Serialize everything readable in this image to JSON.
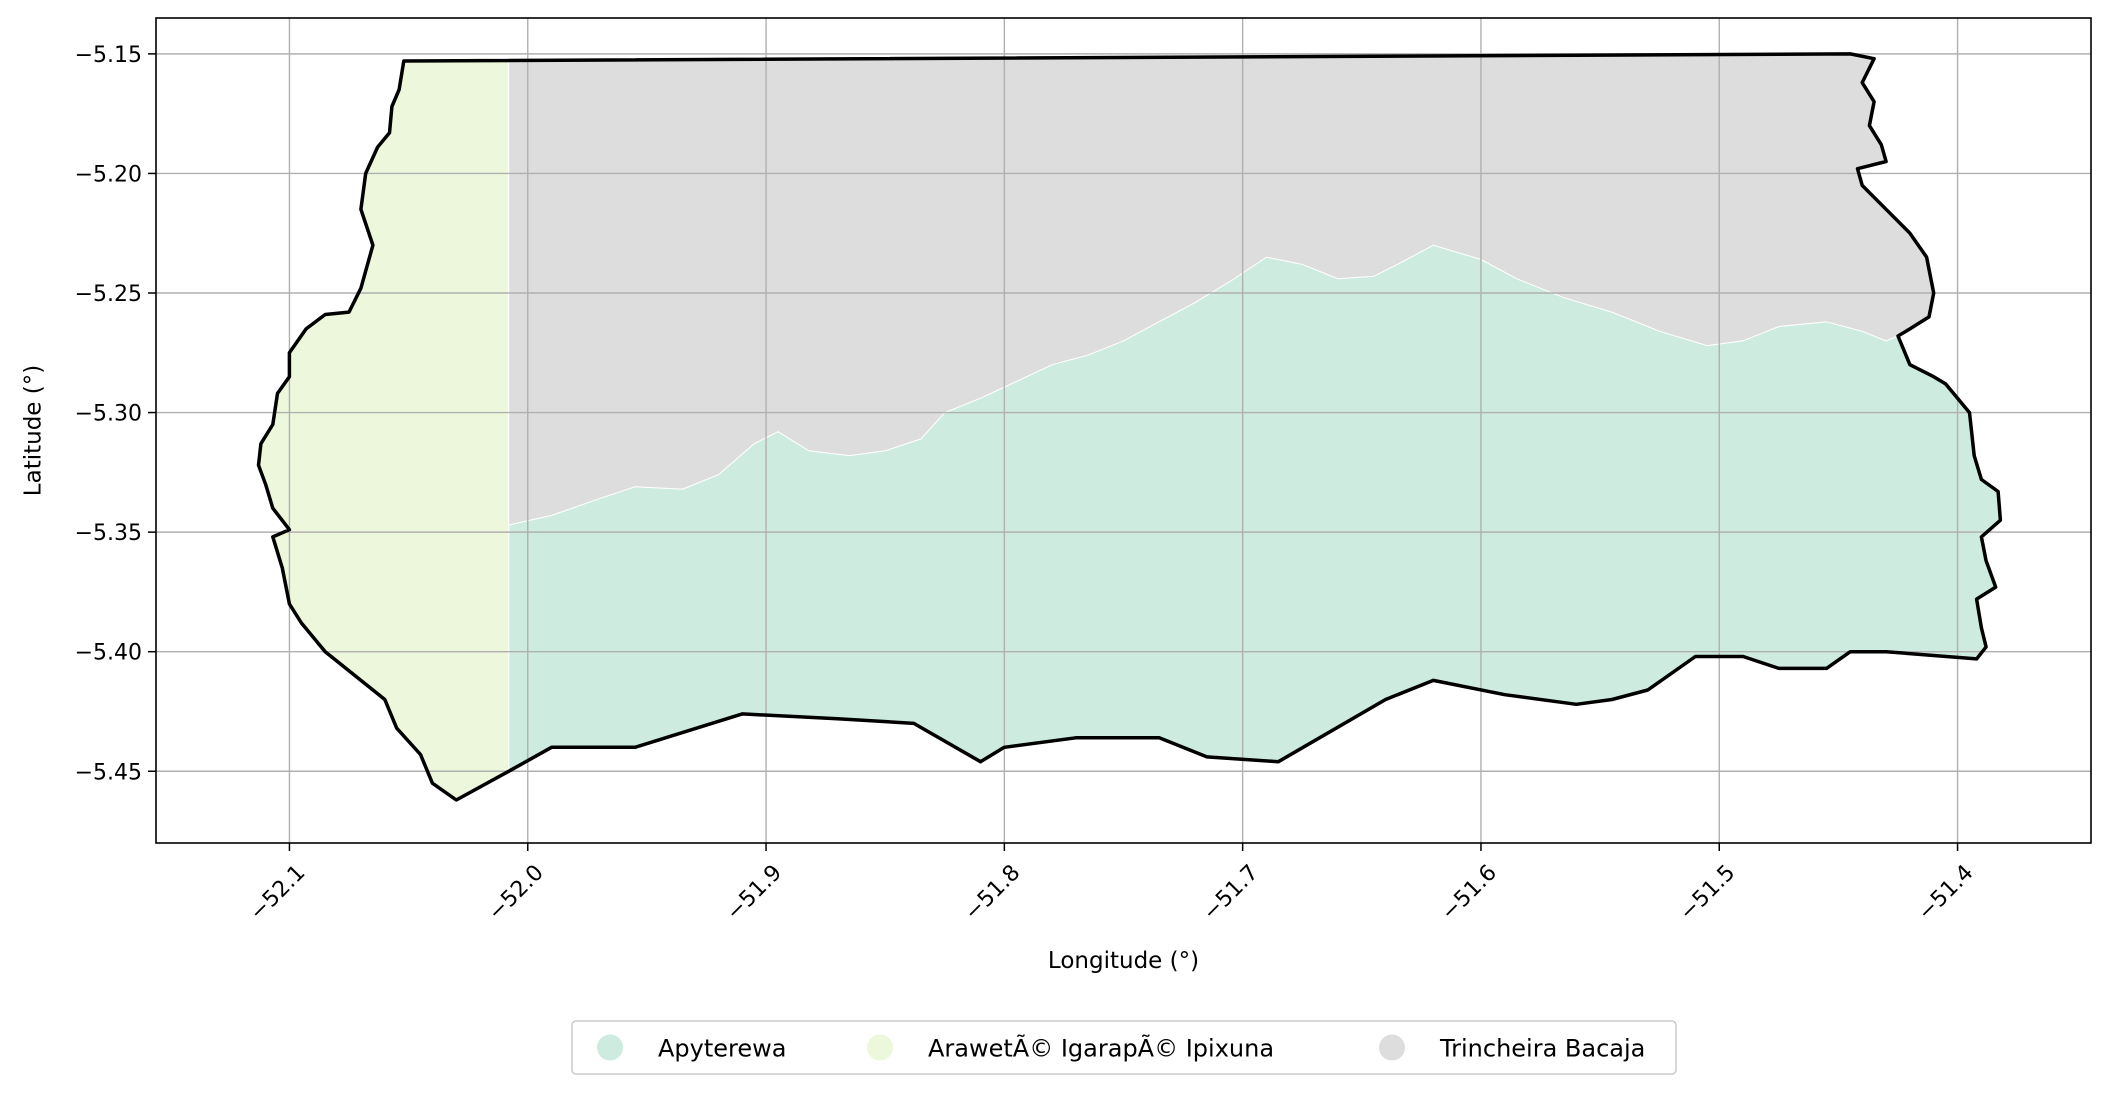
{
  "chart_data": {
    "type": "map",
    "xlabel": "Longitude (°)",
    "ylabel": "Latitude (°)",
    "xlim": [
      -52.156,
      -51.344
    ],
    "ylim": [
      -5.48,
      -5.135
    ],
    "grid": true,
    "legend_placement": "bottom-center",
    "x_ticks": [
      {
        "value": -52.1,
        "label": "−52.1"
      },
      {
        "value": -52.0,
        "label": "−52.0"
      },
      {
        "value": -51.9,
        "label": "−51.9"
      },
      {
        "value": -51.8,
        "label": "−51.8"
      },
      {
        "value": -51.7,
        "label": "−51.7"
      },
      {
        "value": -51.6,
        "label": "−51.6"
      },
      {
        "value": -51.5,
        "label": "−51.5"
      },
      {
        "value": -51.4,
        "label": "−51.4"
      }
    ],
    "y_ticks": [
      {
        "value": -5.15,
        "label": "−5.15"
      },
      {
        "value": -5.2,
        "label": "−5.20"
      },
      {
        "value": -5.25,
        "label": "−5.25"
      },
      {
        "value": -5.3,
        "label": "−5.30"
      },
      {
        "value": -5.35,
        "label": "−5.35"
      },
      {
        "value": -5.4,
        "label": "−5.40"
      },
      {
        "value": -5.45,
        "label": "−5.45"
      }
    ],
    "regions": [
      {
        "name": "Apyterewa",
        "color": "#cdebdf",
        "polygon": [
          [
            -52.008,
            -5.347
          ],
          [
            -51.99,
            -5.343
          ],
          [
            -51.97,
            -5.336
          ],
          [
            -51.955,
            -5.331
          ],
          [
            -51.935,
            -5.332
          ],
          [
            -51.92,
            -5.326
          ],
          [
            -51.905,
            -5.313
          ],
          [
            -51.895,
            -5.308
          ],
          [
            -51.882,
            -5.316
          ],
          [
            -51.865,
            -5.318
          ],
          [
            -51.85,
            -5.316
          ],
          [
            -51.835,
            -5.311
          ],
          [
            -51.825,
            -5.3
          ],
          [
            -51.81,
            -5.294
          ],
          [
            -51.795,
            -5.287
          ],
          [
            -51.78,
            -5.28
          ],
          [
            -51.765,
            -5.276
          ],
          [
            -51.75,
            -5.27
          ],
          [
            -51.735,
            -5.262
          ],
          [
            -51.72,
            -5.254
          ],
          [
            -51.705,
            -5.245
          ],
          [
            -51.69,
            -5.235
          ],
          [
            -51.675,
            -5.238
          ],
          [
            -51.66,
            -5.244
          ],
          [
            -51.645,
            -5.243
          ],
          [
            -51.635,
            -5.238
          ],
          [
            -51.62,
            -5.23
          ],
          [
            -51.6,
            -5.236
          ],
          [
            -51.585,
            -5.244
          ],
          [
            -51.565,
            -5.252
          ],
          [
            -51.545,
            -5.258
          ],
          [
            -51.525,
            -5.266
          ],
          [
            -51.505,
            -5.272
          ],
          [
            -51.49,
            -5.27
          ],
          [
            -51.475,
            -5.264
          ],
          [
            -51.455,
            -5.262
          ],
          [
            -51.44,
            -5.266
          ],
          [
            -51.43,
            -5.27
          ],
          [
            -51.425,
            -5.268
          ],
          [
            -51.42,
            -5.28
          ],
          [
            -51.41,
            -5.285
          ],
          [
            -51.405,
            -5.288
          ],
          [
            -51.395,
            -5.3
          ],
          [
            -51.393,
            -5.318
          ],
          [
            -51.39,
            -5.328
          ],
          [
            -51.383,
            -5.333
          ],
          [
            -51.382,
            -5.345
          ],
          [
            -51.39,
            -5.352
          ],
          [
            -51.388,
            -5.362
          ],
          [
            -51.384,
            -5.373
          ],
          [
            -51.392,
            -5.378
          ],
          [
            -51.39,
            -5.39
          ],
          [
            -51.388,
            -5.398
          ],
          [
            -51.392,
            -5.403
          ],
          [
            -51.43,
            -5.4
          ],
          [
            -51.445,
            -5.4
          ],
          [
            -51.455,
            -5.407
          ],
          [
            -51.475,
            -5.407
          ],
          [
            -51.49,
            -5.402
          ],
          [
            -51.51,
            -5.402
          ],
          [
            -51.53,
            -5.416
          ],
          [
            -51.545,
            -5.42
          ],
          [
            -51.56,
            -5.422
          ],
          [
            -51.59,
            -5.418
          ],
          [
            -51.62,
            -5.412
          ],
          [
            -51.64,
            -5.42
          ],
          [
            -51.685,
            -5.446
          ],
          [
            -51.715,
            -5.444
          ],
          [
            -51.735,
            -5.436
          ],
          [
            -51.77,
            -5.436
          ],
          [
            -51.8,
            -5.44
          ],
          [
            -51.81,
            -5.446
          ],
          [
            -51.838,
            -5.43
          ],
          [
            -51.87,
            -5.428
          ],
          [
            -51.91,
            -5.426
          ],
          [
            -51.955,
            -5.44
          ],
          [
            -51.99,
            -5.44
          ],
          [
            -52.008,
            -5.45
          ]
        ]
      },
      {
        "name": "ArawetÃ© IgarapÃ© Ipixuna",
        "color": "#edf7dc",
        "polygon": [
          [
            -52.052,
            -5.153
          ],
          [
            -52.008,
            -5.153
          ],
          [
            -52.008,
            -5.45
          ],
          [
            -52.03,
            -5.462
          ],
          [
            -52.04,
            -5.455
          ],
          [
            -52.045,
            -5.443
          ],
          [
            -52.055,
            -5.432
          ],
          [
            -52.06,
            -5.42
          ],
          [
            -52.085,
            -5.4
          ],
          [
            -52.095,
            -5.388
          ],
          [
            -52.1,
            -5.38
          ],
          [
            -52.103,
            -5.365
          ],
          [
            -52.107,
            -5.352
          ],
          [
            -52.1,
            -5.349
          ],
          [
            -52.107,
            -5.34
          ],
          [
            -52.11,
            -5.33
          ],
          [
            -52.113,
            -5.322
          ],
          [
            -52.112,
            -5.313
          ],
          [
            -52.107,
            -5.305
          ],
          [
            -52.105,
            -5.292
          ],
          [
            -52.1,
            -5.285
          ],
          [
            -52.1,
            -5.275
          ],
          [
            -52.093,
            -5.265
          ],
          [
            -52.085,
            -5.259
          ],
          [
            -52.075,
            -5.258
          ],
          [
            -52.07,
            -5.248
          ],
          [
            -52.065,
            -5.23
          ],
          [
            -52.07,
            -5.215
          ],
          [
            -52.068,
            -5.2
          ],
          [
            -52.063,
            -5.189
          ],
          [
            -52.058,
            -5.183
          ],
          [
            -52.057,
            -5.172
          ],
          [
            -52.054,
            -5.165
          ]
        ]
      },
      {
        "name": "Trincheira Bacaja",
        "color": "#dddddd",
        "polygon": [
          [
            -52.008,
            -5.153
          ],
          [
            -51.445,
            -5.15
          ],
          [
            -51.435,
            -5.152
          ],
          [
            -51.44,
            -5.162
          ],
          [
            -51.435,
            -5.17
          ],
          [
            -51.437,
            -5.18
          ],
          [
            -51.432,
            -5.188
          ],
          [
            -51.43,
            -5.195
          ],
          [
            -51.438,
            -5.197
          ],
          [
            -51.442,
            -5.198
          ],
          [
            -51.44,
            -5.205
          ],
          [
            -51.43,
            -5.215
          ],
          [
            -51.42,
            -5.225
          ],
          [
            -51.413,
            -5.235
          ],
          [
            -51.41,
            -5.25
          ],
          [
            -51.412,
            -5.26
          ],
          [
            -51.42,
            -5.265
          ],
          [
            -51.425,
            -5.268
          ],
          [
            -51.43,
            -5.27
          ],
          [
            -51.44,
            -5.266
          ],
          [
            -51.455,
            -5.262
          ],
          [
            -51.475,
            -5.264
          ],
          [
            -51.49,
            -5.27
          ],
          [
            -51.505,
            -5.272
          ],
          [
            -51.525,
            -5.266
          ],
          [
            -51.545,
            -5.258
          ],
          [
            -51.565,
            -5.252
          ],
          [
            -51.585,
            -5.244
          ],
          [
            -51.6,
            -5.236
          ],
          [
            -51.62,
            -5.23
          ],
          [
            -51.635,
            -5.238
          ],
          [
            -51.645,
            -5.243
          ],
          [
            -51.66,
            -5.244
          ],
          [
            -51.675,
            -5.238
          ],
          [
            -51.69,
            -5.235
          ],
          [
            -51.705,
            -5.245
          ],
          [
            -51.72,
            -5.254
          ],
          [
            -51.735,
            -5.262
          ],
          [
            -51.75,
            -5.27
          ],
          [
            -51.765,
            -5.276
          ],
          [
            -51.78,
            -5.28
          ],
          [
            -51.795,
            -5.287
          ],
          [
            -51.81,
            -5.294
          ],
          [
            -51.825,
            -5.3
          ],
          [
            -51.835,
            -5.311
          ],
          [
            -51.85,
            -5.316
          ],
          [
            -51.865,
            -5.318
          ],
          [
            -51.882,
            -5.316
          ],
          [
            -51.895,
            -5.308
          ],
          [
            -51.905,
            -5.313
          ],
          [
            -51.92,
            -5.326
          ],
          [
            -51.935,
            -5.332
          ],
          [
            -51.955,
            -5.331
          ],
          [
            -51.97,
            -5.336
          ],
          [
            -51.99,
            -5.343
          ],
          [
            -52.008,
            -5.347
          ]
        ]
      }
    ],
    "outline": [
      [
        -52.052,
        -5.153
      ],
      [
        -51.445,
        -5.15
      ],
      [
        -51.435,
        -5.152
      ],
      [
        -51.44,
        -5.162
      ],
      [
        -51.435,
        -5.17
      ],
      [
        -51.437,
        -5.18
      ],
      [
        -51.432,
        -5.188
      ],
      [
        -51.43,
        -5.195
      ],
      [
        -51.438,
        -5.197
      ],
      [
        -51.442,
        -5.198
      ],
      [
        -51.44,
        -5.205
      ],
      [
        -51.43,
        -5.215
      ],
      [
        -51.42,
        -5.225
      ],
      [
        -51.413,
        -5.235
      ],
      [
        -51.41,
        -5.25
      ],
      [
        -51.412,
        -5.26
      ],
      [
        -51.42,
        -5.265
      ],
      [
        -51.425,
        -5.268
      ],
      [
        -51.42,
        -5.28
      ],
      [
        -51.41,
        -5.285
      ],
      [
        -51.405,
        -5.288
      ],
      [
        -51.395,
        -5.3
      ],
      [
        -51.393,
        -5.318
      ],
      [
        -51.39,
        -5.328
      ],
      [
        -51.383,
        -5.333
      ],
      [
        -51.382,
        -5.345
      ],
      [
        -51.39,
        -5.352
      ],
      [
        -51.388,
        -5.362
      ],
      [
        -51.384,
        -5.373
      ],
      [
        -51.392,
        -5.378
      ],
      [
        -51.39,
        -5.39
      ],
      [
        -51.388,
        -5.398
      ],
      [
        -51.392,
        -5.403
      ],
      [
        -51.43,
        -5.4
      ],
      [
        -51.445,
        -5.4
      ],
      [
        -51.455,
        -5.407
      ],
      [
        -51.475,
        -5.407
      ],
      [
        -51.49,
        -5.402
      ],
      [
        -51.51,
        -5.402
      ],
      [
        -51.53,
        -5.416
      ],
      [
        -51.545,
        -5.42
      ],
      [
        -51.56,
        -5.422
      ],
      [
        -51.59,
        -5.418
      ],
      [
        -51.62,
        -5.412
      ],
      [
        -51.64,
        -5.42
      ],
      [
        -51.685,
        -5.446
      ],
      [
        -51.715,
        -5.444
      ],
      [
        -51.735,
        -5.436
      ],
      [
        -51.77,
        -5.436
      ],
      [
        -51.8,
        -5.44
      ],
      [
        -51.81,
        -5.446
      ],
      [
        -51.838,
        -5.43
      ],
      [
        -51.87,
        -5.428
      ],
      [
        -51.91,
        -5.426
      ],
      [
        -51.955,
        -5.44
      ],
      [
        -51.99,
        -5.44
      ],
      [
        -52.008,
        -5.45
      ],
      [
        -52.03,
        -5.462
      ],
      [
        -52.04,
        -5.455
      ],
      [
        -52.045,
        -5.443
      ],
      [
        -52.055,
        -5.432
      ],
      [
        -52.06,
        -5.42
      ],
      [
        -52.085,
        -5.4
      ],
      [
        -52.095,
        -5.388
      ],
      [
        -52.1,
        -5.38
      ],
      [
        -52.103,
        -5.365
      ],
      [
        -52.107,
        -5.352
      ],
      [
        -52.1,
        -5.349
      ],
      [
        -52.107,
        -5.34
      ],
      [
        -52.11,
        -5.33
      ],
      [
        -52.113,
        -5.322
      ],
      [
        -52.112,
        -5.313
      ],
      [
        -52.107,
        -5.305
      ],
      [
        -52.105,
        -5.292
      ],
      [
        -52.1,
        -5.285
      ],
      [
        -52.1,
        -5.275
      ],
      [
        -52.093,
        -5.265
      ],
      [
        -52.085,
        -5.259
      ],
      [
        -52.075,
        -5.258
      ],
      [
        -52.07,
        -5.248
      ],
      [
        -52.065,
        -5.23
      ],
      [
        -52.07,
        -5.215
      ],
      [
        -52.068,
        -5.2
      ],
      [
        -52.063,
        -5.189
      ],
      [
        -52.058,
        -5.183
      ],
      [
        -52.057,
        -5.172
      ],
      [
        -52.054,
        -5.165
      ],
      [
        -52.052,
        -5.153
      ]
    ],
    "legend": [
      {
        "name": "Apyterewa",
        "color": "#cdebdf"
      },
      {
        "name": "ArawetÃ© IgarapÃ© Ipixuna",
        "color": "#edf7dc"
      },
      {
        "name": "Trincheira Bacaja",
        "color": "#dddddd"
      }
    ]
  }
}
